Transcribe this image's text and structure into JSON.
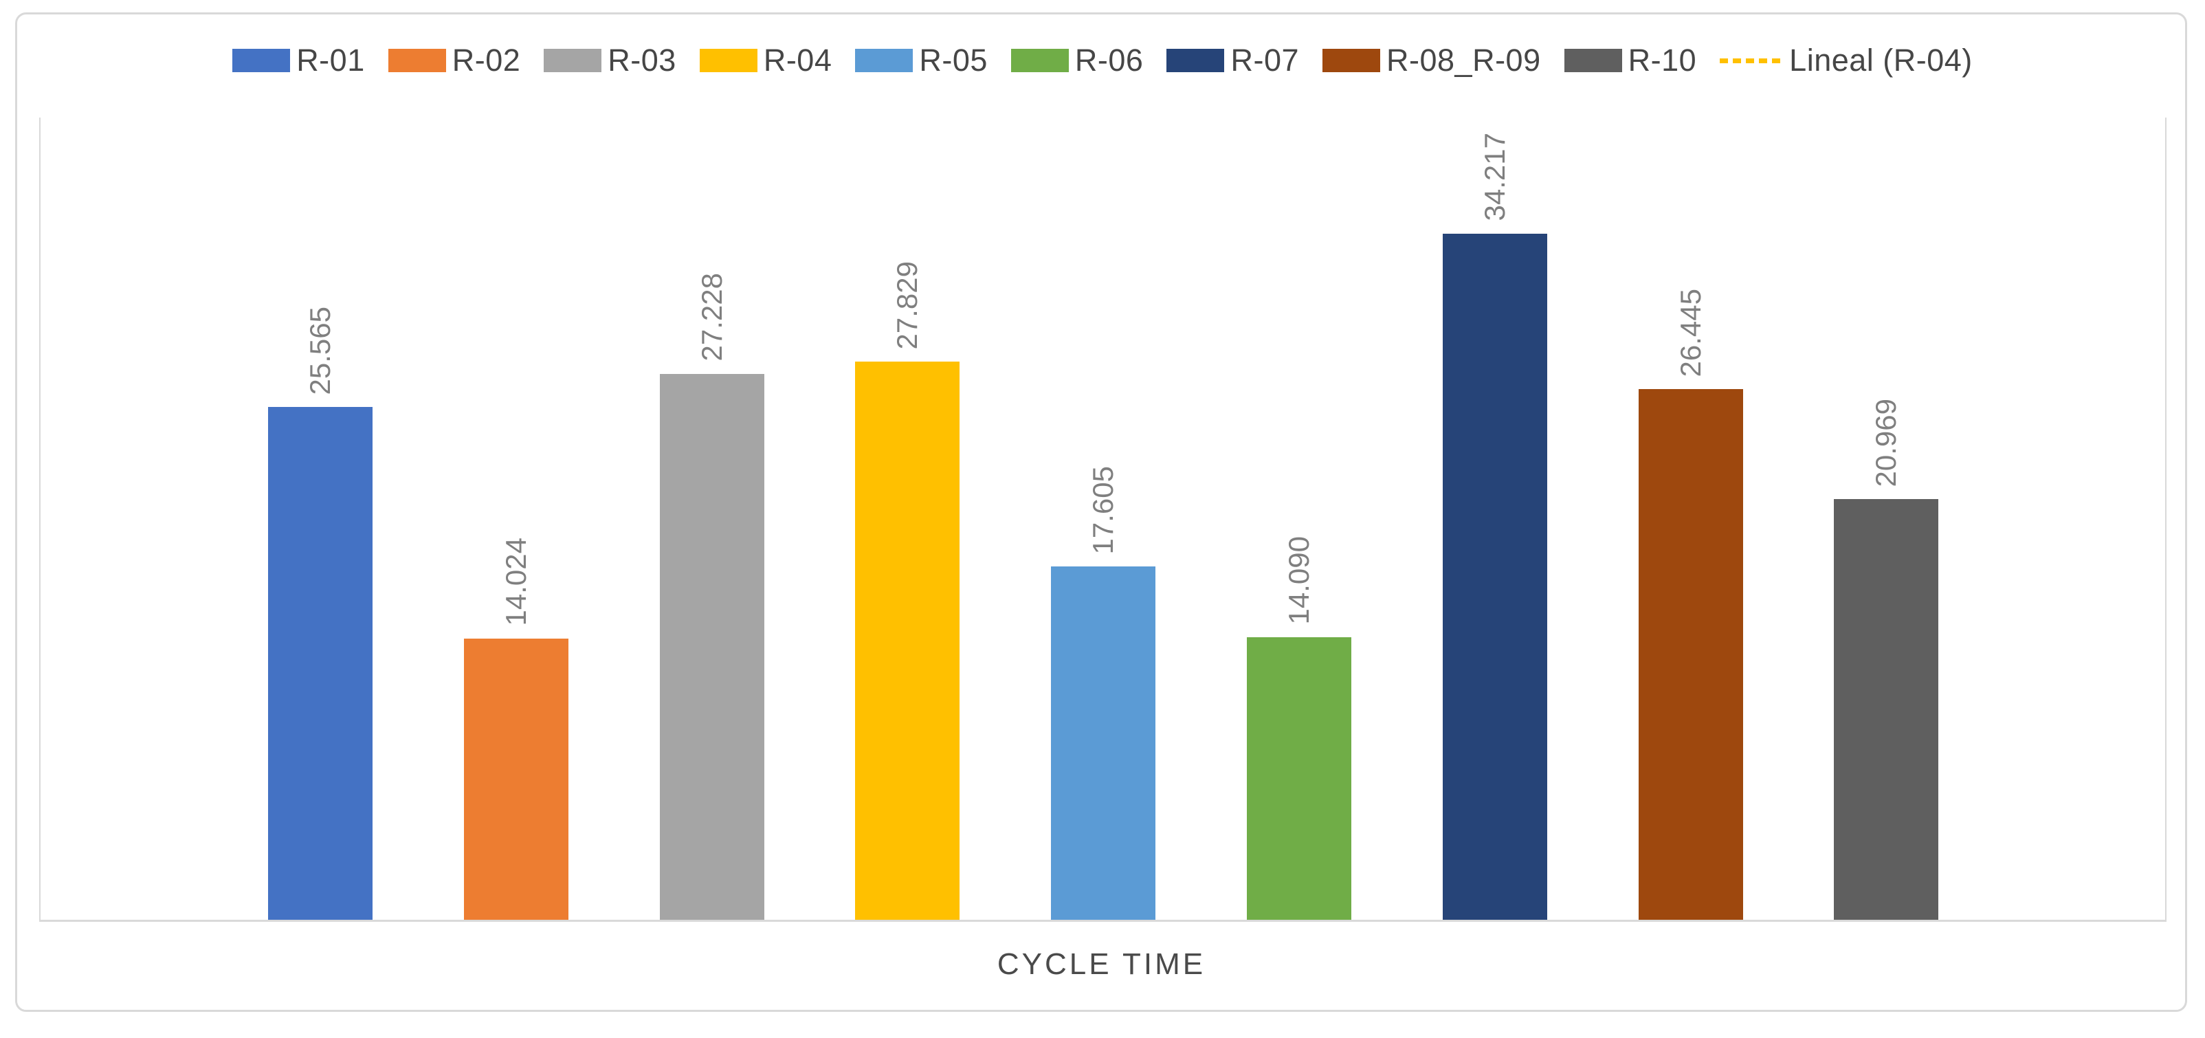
{
  "chart_data": {
    "type": "bar",
    "title": "",
    "xlabel": "CYCLE TIME",
    "ylabel": "",
    "categories": [
      "CYCLE TIME"
    ],
    "ylim": [
      0,
      40
    ],
    "grid": false,
    "legend_position": "top",
    "series": [
      {
        "name": "R-01",
        "values": [
          25.565
        ],
        "display_label": "25.565",
        "color": "#4472C4"
      },
      {
        "name": "R-02",
        "values": [
          14.024
        ],
        "display_label": "14.024",
        "color": "#ED7D31"
      },
      {
        "name": "R-03",
        "values": [
          27.228
        ],
        "display_label": "27.228",
        "color": "#A5A5A5"
      },
      {
        "name": "R-04",
        "values": [
          27.829
        ],
        "display_label": "27.829",
        "color": "#FFC000"
      },
      {
        "name": "R-05",
        "values": [
          17.605
        ],
        "display_label": "17.605",
        "color": "#5B9BD5"
      },
      {
        "name": "R-06",
        "values": [
          14.09
        ],
        "display_label": "14.090",
        "color": "#70AD47"
      },
      {
        "name": "R-07",
        "values": [
          34.217
        ],
        "display_label": "34.217",
        "color": "#264478"
      },
      {
        "name": "R-08_R-09",
        "values": [
          26.445
        ],
        "display_label": "26.445",
        "color": "#9E480E"
      },
      {
        "name": "R-10",
        "values": [
          20.969
        ],
        "display_label": "20.969",
        "color": "#5F5F5F"
      }
    ],
    "trendline_legend": {
      "label": "Lineal (R-04)",
      "for_series": "R-04",
      "style": "dashed",
      "color": "#FFC000",
      "drawn_in_plot": false
    },
    "value_label_color": "#7F7F7F",
    "border_color": "#D9D9D9"
  }
}
